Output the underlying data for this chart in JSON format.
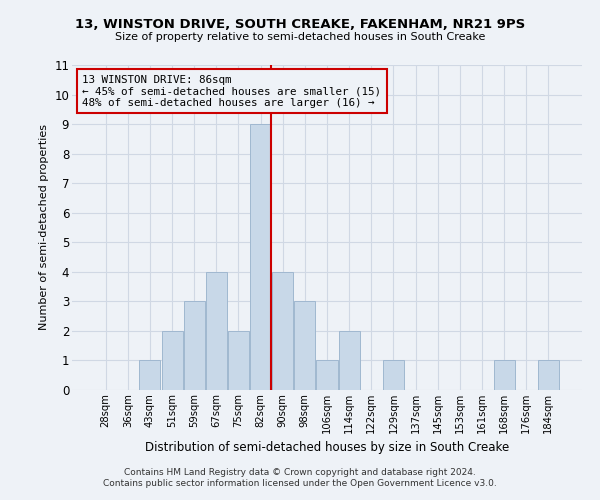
{
  "title": "13, WINSTON DRIVE, SOUTH CREAKE, FAKENHAM, NR21 9PS",
  "subtitle": "Size of property relative to semi-detached houses in South Creake",
  "xlabel": "Distribution of semi-detached houses by size in South Creake",
  "ylabel": "Number of semi-detached properties",
  "footnote1": "Contains HM Land Registry data © Crown copyright and database right 2024.",
  "footnote2": "Contains public sector information licensed under the Open Government Licence v3.0.",
  "bar_labels": [
    "28sqm",
    "36sqm",
    "43sqm",
    "51sqm",
    "59sqm",
    "67sqm",
    "75sqm",
    "82sqm",
    "90sqm",
    "98sqm",
    "106sqm",
    "114sqm",
    "122sqm",
    "129sqm",
    "137sqm",
    "145sqm",
    "153sqm",
    "161sqm",
    "168sqm",
    "176sqm",
    "184sqm"
  ],
  "bar_values": [
    0,
    0,
    1,
    2,
    3,
    4,
    2,
    9,
    4,
    3,
    1,
    2,
    0,
    1,
    0,
    0,
    0,
    0,
    1,
    0,
    1
  ],
  "bar_color": "#c8d8e8",
  "bar_edge_color": "#a0b8d0",
  "property_line_x": 7,
  "annotation_title": "13 WINSTON DRIVE: 86sqm",
  "annotation_line1": "← 45% of semi-detached houses are smaller (15)",
  "annotation_line2": "48% of semi-detached houses are larger (16) →",
  "annotation_box_color": "#cc0000",
  "ylim": [
    0,
    11
  ],
  "yticks": [
    0,
    1,
    2,
    3,
    4,
    5,
    6,
    7,
    8,
    9,
    10,
    11
  ],
  "grid_color": "#d0d8e4",
  "background_color": "#eef2f7"
}
